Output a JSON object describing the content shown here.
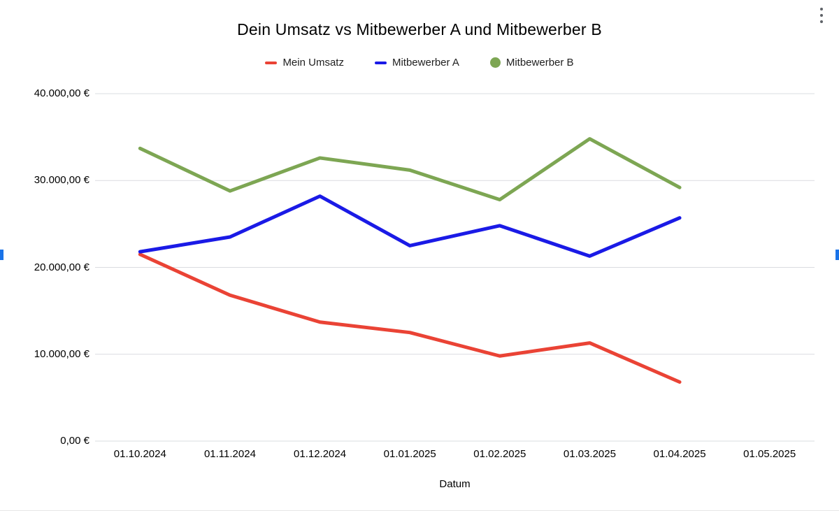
{
  "page": {
    "background": "#ffffff"
  },
  "menu": {
    "options_icon": "kebab-menu"
  },
  "colors": {
    "gridline": "#dadce0",
    "axis_text": "#000000",
    "title_text": "#000000",
    "legend_text": "#212121",
    "menu_icon": "#5f6368",
    "selection_handle": "#1a73e8"
  },
  "chart_data": {
    "type": "line",
    "title": "Dein Umsatz vs Mitbewerber A und Mitbewerber B",
    "xlabel": "Datum",
    "ylabel": "",
    "categories": [
      "01.10.2024",
      "01.11.2024",
      "01.12.2024",
      "01.01.2025",
      "01.02.2025",
      "01.03.2025",
      "01.04.2025",
      "01.05.2025"
    ],
    "ylim": [
      0,
      40000
    ],
    "yticks": [
      {
        "value": 0,
        "label": "0,00 €"
      },
      {
        "value": 10000,
        "label": "10.000,00 €"
      },
      {
        "value": 20000,
        "label": "20.000,00 €"
      },
      {
        "value": 30000,
        "label": "30.000,00 €"
      },
      {
        "value": 40000,
        "label": "40.000,00 €"
      }
    ],
    "grid": true,
    "legend_position": "top",
    "series": [
      {
        "name": "Mein Umsatz",
        "color": "#ea4335",
        "marker": "line",
        "values": [
          21500,
          16800,
          13700,
          12500,
          9800,
          11300,
          6800,
          null
        ]
      },
      {
        "name": "Mitbewerber A",
        "color": "#1a1ae6",
        "marker": "line",
        "values": [
          21800,
          23500,
          28200,
          22500,
          24800,
          21300,
          25700,
          null
        ]
      },
      {
        "name": "Mitbewerber B",
        "color": "#7da653",
        "marker": "circle",
        "values": [
          33700,
          28800,
          32600,
          31200,
          27800,
          34800,
          29200,
          null
        ]
      }
    ]
  }
}
